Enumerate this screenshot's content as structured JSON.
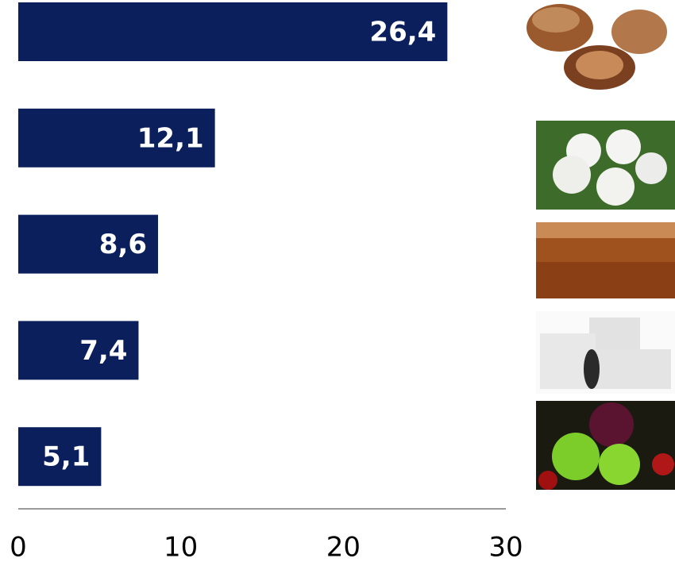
{
  "chart_data": {
    "type": "barh",
    "categories": [
      null,
      null,
      null,
      null,
      null
    ],
    "values": [
      26.4,
      12.1,
      8.6,
      7.4,
      5.1
    ],
    "value_labels": [
      "26,4",
      "12,1",
      "8,6",
      "7,4",
      "5,1"
    ],
    "color": "#0a1f5c",
    "xlim": [
      0,
      30
    ],
    "xticks": [
      0,
      10,
      20,
      30
    ]
  }
}
